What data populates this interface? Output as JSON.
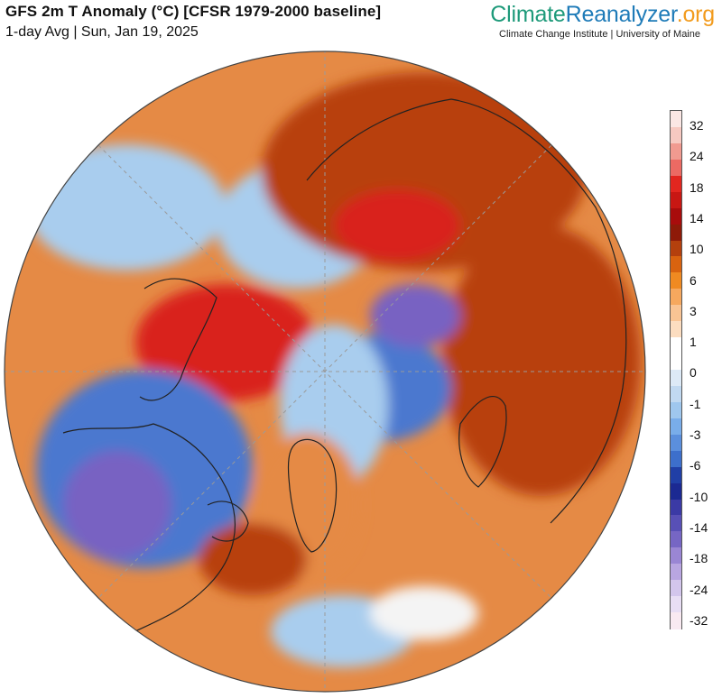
{
  "header": {
    "title": "GFS 2m T Anomaly (°C) [CFSR 1979-2000 baseline]",
    "subtitle": "1-day Avg | Sun, Jan 19, 2025"
  },
  "brand": {
    "part1": "Climate",
    "part2": "Reanalyzer",
    "part3": ".org",
    "sub": "Climate Change Institute | University of Maine",
    "colors": {
      "climate": "#1e9a7a",
      "reanalyzer": "#1e7bb8",
      "org": "#f29b1d"
    }
  },
  "map": {
    "projection": "polar-stereographic-north",
    "colors": {
      "ocean_warm": "#e58a45",
      "deep_warm": "#b8400f",
      "hot": "#d9201c",
      "cool": "#a9cdee",
      "cold": "#4b78cf",
      "very_cold": "#7862c2",
      "neutral": "#f4f4f4"
    }
  },
  "legend": {
    "labels": [
      "32",
      "24",
      "18",
      "14",
      "10",
      "6",
      "3",
      "1",
      "0",
      "-1",
      "-3",
      "-6",
      "-10",
      "-14",
      "-18",
      "-24",
      "-32"
    ],
    "colors": [
      "#fbe7e4",
      "#f7c9c1",
      "#f19a90",
      "#ec6a63",
      "#e2261f",
      "#c81713",
      "#a80c0c",
      "#8e1a08",
      "#b4400d",
      "#d9630f",
      "#f08a21",
      "#f6a85e",
      "#f9c494",
      "#fcddc0",
      "#ffffff",
      "#ffffff",
      "#ddeaf7",
      "#c1d9f1",
      "#9fc7ee",
      "#79adea",
      "#5b8fdd",
      "#3d6fcb",
      "#203fa6",
      "#1b2992",
      "#3b3aa5",
      "#5850b6",
      "#7666c4",
      "#9a86d4",
      "#b9a6e1",
      "#d3c6ec",
      "#e8def4",
      "#f9eaf1"
    ]
  }
}
